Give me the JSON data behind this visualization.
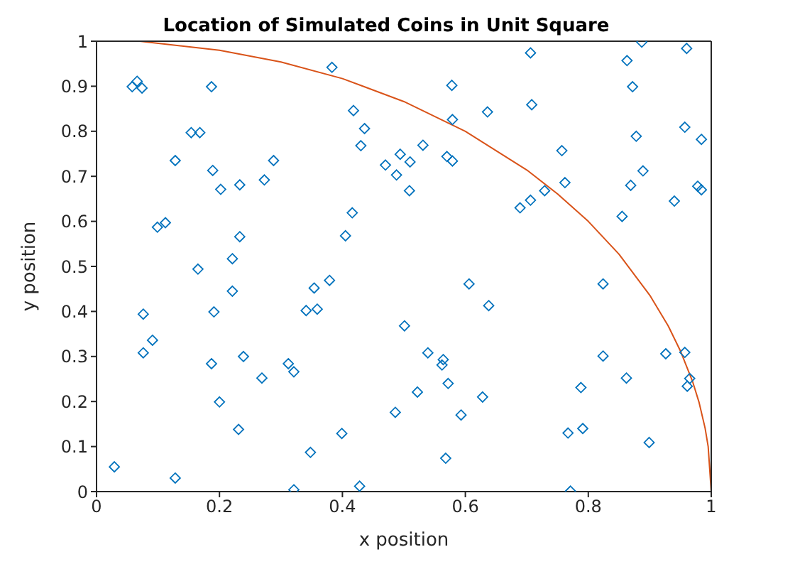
{
  "chart_data": {
    "type": "scatter",
    "title": "Location of Simulated Coins in Unit Square",
    "xlabel": "x position",
    "ylabel": "y position",
    "xlim": [
      0,
      1
    ],
    "ylim": [
      0,
      1
    ],
    "xticks": [
      0,
      0.2,
      0.4,
      0.6,
      0.8,
      1
    ],
    "yticks": [
      0,
      0.1,
      0.2,
      0.3,
      0.4,
      0.5,
      0.6,
      0.7,
      0.8,
      0.9,
      1
    ],
    "legend": false,
    "series": [
      {
        "color": "#0072bd",
        "marker": "diamond",
        "x": [
          0.058,
          0.066,
          0.074,
          0.187,
          0.383,
          0.154,
          0.168,
          0.128,
          0.189,
          0.202,
          0.233,
          0.273,
          0.288,
          0.099,
          0.112,
          0.233,
          0.221,
          0.418,
          0.436,
          0.43,
          0.47,
          0.488,
          0.416,
          0.405,
          0.165,
          0.494,
          0.51,
          0.509,
          0.531,
          0.57,
          0.579,
          0.578,
          0.579,
          0.636,
          0.706,
          0.708,
          0.757,
          0.762,
          0.729,
          0.706,
          0.689,
          0.863,
          0.887,
          0.872,
          0.96,
          0.878,
          0.889,
          0.869,
          0.855,
          0.94,
          0.957,
          0.984,
          0.978,
          0.984,
          0.029,
          0.076,
          0.076,
          0.091,
          0.128,
          0.221,
          0.191,
          0.187,
          0.239,
          0.2,
          0.231,
          0.269,
          0.312,
          0.321,
          0.321,
          0.341,
          0.354,
          0.359,
          0.379,
          0.348,
          0.399,
          0.428,
          0.486,
          0.501,
          0.606,
          0.638,
          0.539,
          0.564,
          0.562,
          0.522,
          0.572,
          0.628,
          0.593,
          0.568,
          0.824,
          0.824,
          0.862,
          0.788,
          0.767,
          0.791,
          0.771,
          0.899,
          0.926,
          0.957,
          0.965,
          0.961
        ],
        "values": [
          0.899,
          0.911,
          0.896,
          0.899,
          0.942,
          0.797,
          0.797,
          0.735,
          0.713,
          0.671,
          0.681,
          0.692,
          0.735,
          0.587,
          0.597,
          0.566,
          0.517,
          0.846,
          0.806,
          0.768,
          0.725,
          0.703,
          0.619,
          0.568,
          0.494,
          0.749,
          0.732,
          0.668,
          0.769,
          0.744,
          0.734,
          0.902,
          0.826,
          0.843,
          0.974,
          0.859,
          0.757,
          0.686,
          0.668,
          0.647,
          0.63,
          0.957,
          0.998,
          0.899,
          0.984,
          0.789,
          0.712,
          0.68,
          0.611,
          0.645,
          0.809,
          0.782,
          0.678,
          0.67,
          0.055,
          0.394,
          0.308,
          0.336,
          0.03,
          0.445,
          0.399,
          0.284,
          0.3,
          0.199,
          0.138,
          0.252,
          0.284,
          0.266,
          0.004,
          0.402,
          0.452,
          0.405,
          0.469,
          0.087,
          0.129,
          0.012,
          0.176,
          0.368,
          0.461,
          0.413,
          0.308,
          0.293,
          0.281,
          0.221,
          0.24,
          0.21,
          0.17,
          0.074,
          0.461,
          0.301,
          0.252,
          0.231,
          0.13,
          0.14,
          0.001,
          0.109,
          0.306,
          0.309,
          0.251,
          0.234
        ]
      },
      {
        "type": "line",
        "color": "#d95319",
        "marker": "none",
        "x": [
          0.07,
          0.2,
          0.3,
          0.4,
          0.5,
          0.6,
          0.7,
          0.75,
          0.8,
          0.85,
          0.9,
          0.93,
          0.95,
          0.97,
          0.98,
          0.99,
          0.995,
          1
        ],
        "values": [
          1,
          0.98,
          0.954,
          0.917,
          0.866,
          0.8,
          0.714,
          0.661,
          0.6,
          0.527,
          0.436,
          0.368,
          0.312,
          0.243,
          0.199,
          0.141,
          0.1,
          0
        ]
      }
    ]
  }
}
